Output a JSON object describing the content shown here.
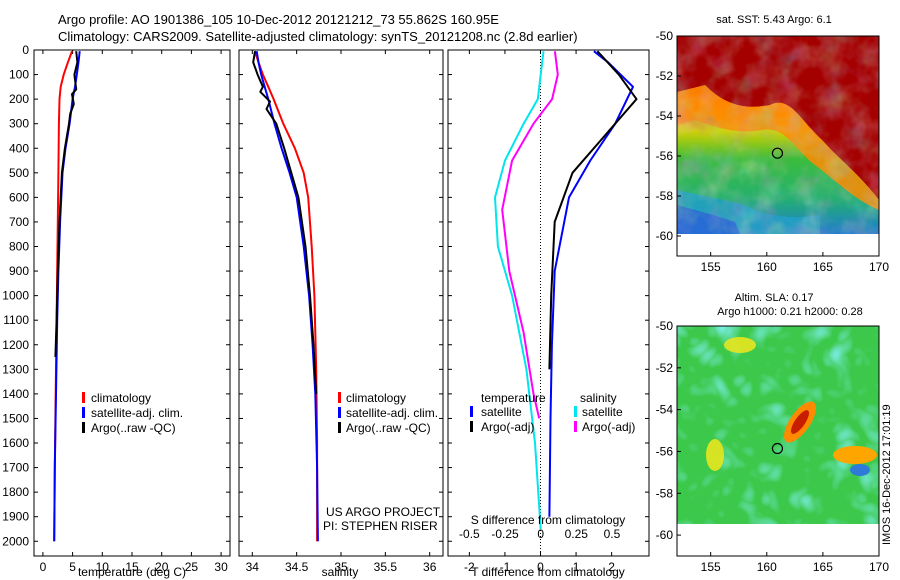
{
  "header": {
    "line1": "Argo profile: AO 1901386_105 10-Dec-2012 20121212_73 55.862S 160.95E",
    "line2": "Climatology: CARS2009. Satellite-adjusted climatology: synTS_20121208.nc (2.8d earlier)"
  },
  "colors": {
    "climatology": "#ff0000",
    "satellite": "#0000ff",
    "argo": "#000000",
    "sat_diff_T": "#00e5ee",
    "argo_diff_S": "#ff00ff"
  },
  "footer": {
    "project": "US ARGO PROJECT",
    "pi": "PI: STEPHEN RISER",
    "imos": "IMOS 16-Dec-2012 17:01:19"
  },
  "chart_data": [
    {
      "type": "line",
      "xlabel": "temperature (deg C)",
      "ylabel": "",
      "xlim": [
        -1.5,
        31.5
      ],
      "ylim": [
        2060,
        0
      ],
      "xticks": [
        "0",
        "5",
        "10",
        "15",
        "20",
        "25",
        "30"
      ],
      "yticks": [
        "0",
        "100",
        "200",
        "300",
        "400",
        "500",
        "600",
        "700",
        "800",
        "900",
        "1000",
        "1100",
        "1200",
        "1300",
        "1400",
        "1500",
        "1600",
        "1700",
        "1800",
        "1900",
        "2000"
      ],
      "legend": [
        "climatology",
        "satellite-adj. clim.",
        "Argo(..raw -QC)"
      ],
      "legend_position": "bottom-center",
      "series": [
        {
          "name": "climatology",
          "color": "#ff0000",
          "x": [
            4.9,
            4.2,
            3.5,
            3.0,
            2.8,
            2.7,
            2.6,
            2.5,
            2.4,
            2.3,
            2.2,
            2.1,
            2.0,
            1.9
          ],
          "y": [
            5,
            50,
            100,
            150,
            200,
            300,
            500,
            700,
            900,
            1100,
            1300,
            1500,
            1700,
            2000
          ]
        },
        {
          "name": "satellite-adj. clim.",
          "color": "#0000ff",
          "x": [
            6.2,
            6.0,
            5.7,
            5.4,
            5.0,
            4.5,
            3.8,
            3.3,
            2.9,
            2.6,
            2.4,
            2.2,
            2.0,
            1.9
          ],
          "y": [
            5,
            50,
            100,
            150,
            200,
            300,
            400,
            500,
            700,
            900,
            1100,
            1400,
            1700,
            2000
          ]
        },
        {
          "name": "Argo(..raw -QC)",
          "color": "#000000",
          "x": [
            5.6,
            5.8,
            5.3,
            5.6,
            4.9,
            5.2,
            4.6,
            4.4,
            3.7,
            3.2,
            2.8,
            2.5,
            2.3,
            2.1
          ],
          "y": [
            5,
            50,
            100,
            160,
            180,
            220,
            260,
            300,
            400,
            500,
            700,
            900,
            1100,
            1250
          ]
        }
      ]
    },
    {
      "type": "line",
      "xlabel": "salinity",
      "xlim": [
        33.85,
        36.15
      ],
      "ylim": [
        2060,
        0
      ],
      "xticks": [
        "34",
        "34.5",
        "35",
        "35.5",
        "36"
      ],
      "legend": [
        "climatology",
        "satellite-adj. clim.",
        "Argo(..raw -QC)"
      ],
      "legend_position": "bottom-center",
      "series": [
        {
          "name": "climatology",
          "color": "#ff0000",
          "x": [
            34.03,
            34.07,
            34.12,
            34.18,
            34.24,
            34.35,
            34.48,
            34.58,
            34.63,
            34.67,
            34.7,
            34.72,
            34.73,
            34.73
          ],
          "y": [
            5,
            50,
            100,
            150,
            200,
            300,
            400,
            500,
            600,
            800,
            1000,
            1300,
            1600,
            2000
          ]
        },
        {
          "name": "satellite-adj. clim.",
          "color": "#0000ff",
          "x": [
            34.05,
            34.07,
            34.1,
            34.14,
            34.18,
            34.25,
            34.33,
            34.42,
            34.5,
            34.58,
            34.64,
            34.68,
            34.71,
            34.73,
            34.74
          ],
          "y": [
            5,
            50,
            100,
            150,
            200,
            300,
            400,
            500,
            600,
            800,
            1000,
            1200,
            1400,
            1700,
            2000
          ]
        },
        {
          "name": "Argo(..raw -QC)",
          "color": "#000000",
          "x": [
            34.03,
            34.01,
            34.06,
            34.12,
            34.09,
            34.2,
            34.16,
            34.27,
            34.36,
            34.44,
            34.52,
            34.6,
            34.65,
            34.69,
            34.72
          ],
          "y": [
            5,
            50,
            100,
            150,
            170,
            210,
            240,
            300,
            400,
            500,
            600,
            800,
            1000,
            1200,
            1400
          ]
        }
      ]
    },
    {
      "type": "line",
      "xlabel": "T difference from climatology",
      "xlabel2": "S difference from climatology",
      "xlim": [
        -2.6,
        3.05
      ],
      "xlim_S": [
        -0.65,
        0.76
      ],
      "ylim": [
        2060,
        0
      ],
      "xticks": [
        "-2",
        "-1",
        "0",
        "1",
        "2"
      ],
      "xticks_S": [
        "-0.5",
        "-0.25",
        "0",
        "0.25",
        "0.5"
      ],
      "legend_titles": [
        "temperature",
        "salinity"
      ],
      "legend": [
        "satellite",
        "Argo(-adj)",
        "satellite",
        "Argo(-adj)"
      ],
      "legend_position": "bottom",
      "series": [
        {
          "name": "satellite",
          "group": "temperature",
          "color": "#0000ff",
          "x": [
            1.5,
            1.9,
            2.6,
            2.1,
            1.4,
            0.8,
            0.4,
            0.32,
            0.28,
            0.25
          ],
          "y": [
            5,
            50,
            150,
            300,
            450,
            600,
            900,
            1200,
            1500,
            1900
          ]
        },
        {
          "name": "Argo(-adj)",
          "group": "temperature",
          "color": "#000000",
          "x": [
            1.6,
            2.2,
            2.7,
            1.8,
            0.9,
            0.4,
            0.3,
            0.25
          ],
          "y": [
            5,
            100,
            200,
            350,
            500,
            700,
            1000,
            1300
          ]
        },
        {
          "name": "satellite",
          "group": "salinity",
          "color": "#00e5ee",
          "x": [
            0.02,
            0.0,
            -0.02,
            -0.12,
            -0.25,
            -0.32,
            -0.3,
            -0.2,
            -0.1,
            -0.04,
            0.0
          ],
          "y": [
            5,
            100,
            200,
            300,
            450,
            600,
            800,
            1000,
            1300,
            1600,
            1950
          ]
        },
        {
          "name": "Argo(-adj)",
          "group": "salinity",
          "color": "#ff00ff",
          "x": [
            0.1,
            0.12,
            0.08,
            -0.05,
            -0.2,
            -0.27,
            -0.22,
            -0.12,
            -0.05,
            -0.01
          ],
          "y": [
            5,
            100,
            200,
            300,
            450,
            650,
            900,
            1150,
            1400,
            1500
          ]
        }
      ]
    },
    {
      "type": "heatmap",
      "title": "sat. SST: 5.43 Argo: 6.1",
      "xlim": [
        152,
        170
      ],
      "ylim": [
        -61,
        -50
      ],
      "xticks": [
        "155",
        "160",
        "165",
        "170"
      ],
      "yticks": [
        "-50",
        "-52",
        "-54",
        "-56",
        "-58",
        "-60"
      ],
      "marker": {
        "lon": 160.95,
        "lat": -55.86
      }
    },
    {
      "type": "heatmap",
      "title": "Altim. SLA: 0.17",
      "subtitle": "Argo h1000: 0.21 h2000: 0.28",
      "xlim": [
        152,
        170
      ],
      "ylim": [
        -61,
        -50
      ],
      "xticks": [
        "155",
        "160",
        "165",
        "170"
      ],
      "yticks": [
        "-50",
        "-52",
        "-54",
        "-56",
        "-58",
        "-60"
      ],
      "marker": {
        "lon": 160.95,
        "lat": -55.86
      }
    }
  ]
}
